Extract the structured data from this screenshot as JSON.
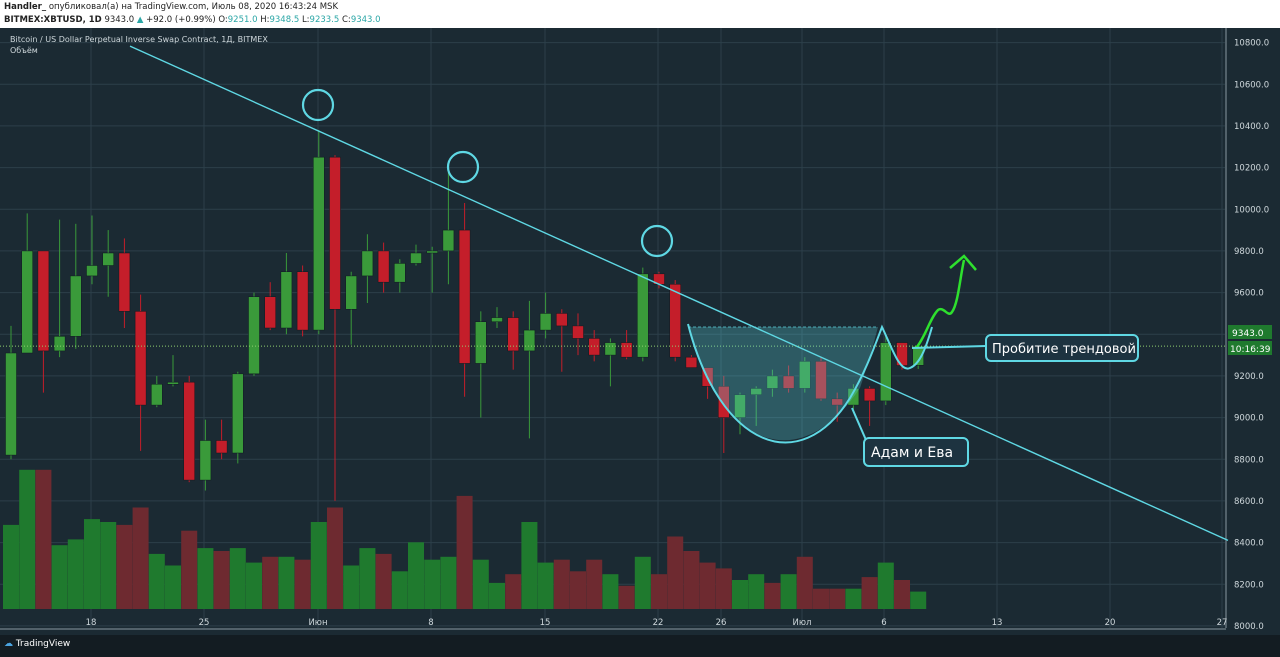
{
  "header": {
    "author": "Handler_",
    "published": "опубликовал(а) на TradingView.com, Июль 08, 2020 16:43:24 MSK",
    "symbol": "BITMEX:XBTUSD, 1D",
    "last": "9343.0",
    "change": "+92.0 (+0.99%)",
    "o_label": "O:",
    "o_val": "9251.0",
    "h_label": "H:",
    "h_val": "9348.5",
    "l_label": "L:",
    "l_val": "9233.5",
    "c_label": "C:",
    "c_val": "9343.0"
  },
  "chart_title": "Bitcoin / US Dollar Perpetual Inverse Swap Contract, 1Д, BITMEX",
  "volume_label": "Объём",
  "price_tag": "9343.0",
  "time_tag": "10:16:39",
  "annotations": {
    "breakout": "Пробитие трендовой",
    "adam_eve": "Адам и Ева"
  },
  "footer": {
    "brand": "TradingView"
  },
  "colors": {
    "up": "#3a9a3a",
    "down": "#c41e2a",
    "vol_up": "#1f7a2e",
    "vol_down": "#6e2a30",
    "trend": "#5fd8e4",
    "arrow": "#2ee02e",
    "bg": "#1b2a33"
  },
  "chart_data": {
    "type": "candlestick",
    "title": "Bitcoin / US Dollar Perpetual Inverse Swap Contract, 1Д, BITMEX",
    "y_ticks": [
      8000,
      8200,
      8400,
      8600,
      8800,
      9000,
      9200,
      9400,
      9600,
      9800,
      10000,
      10200,
      10400,
      10600,
      10800
    ],
    "ylim": [
      7990,
      10870
    ],
    "x_tick_labels": [
      "18",
      "25",
      "Июн",
      "8",
      "15",
      "22",
      "26",
      "Июл",
      "6",
      "13",
      "20",
      "27"
    ],
    "candles": [
      {
        "o": 8820,
        "h": 9440,
        "l": 8800,
        "c": 9310
      },
      {
        "o": 9310,
        "h": 9980,
        "l": 9310,
        "c": 9800
      },
      {
        "o": 9800,
        "h": 9800,
        "l": 9120,
        "c": 9320
      },
      {
        "o": 9320,
        "h": 9950,
        "l": 9290,
        "c": 9390
      },
      {
        "o": 9390,
        "h": 9930,
        "l": 9330,
        "c": 9680
      },
      {
        "o": 9680,
        "h": 9970,
        "l": 9640,
        "c": 9730
      },
      {
        "o": 9730,
        "h": 9900,
        "l": 9580,
        "c": 9790
      },
      {
        "o": 9790,
        "h": 9860,
        "l": 9430,
        "c": 9510
      },
      {
        "o": 9510,
        "h": 9590,
        "l": 8840,
        "c": 9060
      },
      {
        "o": 9060,
        "h": 9200,
        "l": 9050,
        "c": 9160
      },
      {
        "o": 9160,
        "h": 9300,
        "l": 9150,
        "c": 9170
      },
      {
        "o": 9170,
        "h": 9200,
        "l": 8690,
        "c": 8700
      },
      {
        "o": 8700,
        "h": 8990,
        "l": 8650,
        "c": 8890
      },
      {
        "o": 8890,
        "h": 8990,
        "l": 8800,
        "c": 8830
      },
      {
        "o": 8830,
        "h": 9220,
        "l": 8780,
        "c": 9210
      },
      {
        "o": 9210,
        "h": 9600,
        "l": 9200,
        "c": 9580
      },
      {
        "o": 9580,
        "h": 9650,
        "l": 9420,
        "c": 9430
      },
      {
        "o": 9430,
        "h": 9790,
        "l": 9400,
        "c": 9700
      },
      {
        "o": 9700,
        "h": 9730,
        "l": 9390,
        "c": 9420
      },
      {
        "o": 9420,
        "h": 10380,
        "l": 9400,
        "c": 10250
      },
      {
        "o": 10250,
        "h": 10260,
        "l": 8600,
        "c": 9520
      },
      {
        "o": 9520,
        "h": 9700,
        "l": 9350,
        "c": 9680
      },
      {
        "o": 9680,
        "h": 9880,
        "l": 9550,
        "c": 9800
      },
      {
        "o": 9800,
        "h": 9840,
        "l": 9600,
        "c": 9650
      },
      {
        "o": 9650,
        "h": 9760,
        "l": 9600,
        "c": 9740
      },
      {
        "o": 9740,
        "h": 9830,
        "l": 9730,
        "c": 9790
      },
      {
        "o": 9790,
        "h": 9820,
        "l": 9600,
        "c": 9800
      },
      {
        "o": 9800,
        "h": 10180,
        "l": 9640,
        "c": 9900
      },
      {
        "o": 9900,
        "h": 10030,
        "l": 9100,
        "c": 9260
      },
      {
        "o": 9260,
        "h": 9510,
        "l": 9000,
        "c": 9460
      },
      {
        "o": 9460,
        "h": 9530,
        "l": 9430,
        "c": 9480
      },
      {
        "o": 9480,
        "h": 9510,
        "l": 9230,
        "c": 9320
      },
      {
        "o": 9320,
        "h": 9560,
        "l": 8900,
        "c": 9420
      },
      {
        "o": 9420,
        "h": 9600,
        "l": 9380,
        "c": 9500
      },
      {
        "o": 9500,
        "h": 9520,
        "l": 9220,
        "c": 9440
      },
      {
        "o": 9440,
        "h": 9500,
        "l": 9300,
        "c": 9380
      },
      {
        "o": 9380,
        "h": 9420,
        "l": 9270,
        "c": 9300
      },
      {
        "o": 9300,
        "h": 9380,
        "l": 9150,
        "c": 9360
      },
      {
        "o": 9360,
        "h": 9420,
        "l": 9280,
        "c": 9290
      },
      {
        "o": 9290,
        "h": 9720,
        "l": 9270,
        "c": 9690
      },
      {
        "o": 9690,
        "h": 9700,
        "l": 9620,
        "c": 9640
      },
      {
        "o": 9640,
        "h": 9660,
        "l": 9270,
        "c": 9290
      },
      {
        "o": 9290,
        "h": 9300,
        "l": 9240,
        "c": 9240
      },
      {
        "o": 9240,
        "h": 9240,
        "l": 9090,
        "c": 9150
      },
      {
        "o": 9150,
        "h": 9200,
        "l": 8830,
        "c": 9000
      },
      {
        "o": 9000,
        "h": 9120,
        "l": 8920,
        "c": 9110
      },
      {
        "o": 9110,
        "h": 9150,
        "l": 8960,
        "c": 9140
      },
      {
        "o": 9140,
        "h": 9230,
        "l": 9100,
        "c": 9200
      },
      {
        "o": 9200,
        "h": 9250,
        "l": 9120,
        "c": 9140
      },
      {
        "o": 9140,
        "h": 9290,
        "l": 9120,
        "c": 9270
      },
      {
        "o": 9270,
        "h": 9290,
        "l": 9080,
        "c": 9090
      },
      {
        "o": 9090,
        "h": 9120,
        "l": 8980,
        "c": 9060
      },
      {
        "o": 9060,
        "h": 9160,
        "l": 9040,
        "c": 9140
      },
      {
        "o": 9140,
        "h": 9150,
        "l": 8960,
        "c": 9080
      },
      {
        "o": 9080,
        "h": 9400,
        "l": 9060,
        "c": 9360
      },
      {
        "o": 9360,
        "h": 9360,
        "l": 9230,
        "c": 9250
      },
      {
        "o": 9251,
        "h": 9348.5,
        "l": 9233.5,
        "c": 9343
      }
    ],
    "volume": [
      {
        "v": 0.29,
        "up": true
      },
      {
        "v": 0.48,
        "up": true
      },
      {
        "v": 0.48,
        "up": false
      },
      {
        "v": 0.22,
        "up": true
      },
      {
        "v": 0.24,
        "up": true
      },
      {
        "v": 0.31,
        "up": true
      },
      {
        "v": 0.3,
        "up": true
      },
      {
        "v": 0.29,
        "up": false
      },
      {
        "v": 0.35,
        "up": false
      },
      {
        "v": 0.19,
        "up": true
      },
      {
        "v": 0.15,
        "up": true
      },
      {
        "v": 0.27,
        "up": false
      },
      {
        "v": 0.21,
        "up": true
      },
      {
        "v": 0.2,
        "up": false
      },
      {
        "v": 0.21,
        "up": true
      },
      {
        "v": 0.16,
        "up": true
      },
      {
        "v": 0.18,
        "up": false
      },
      {
        "v": 0.18,
        "up": true
      },
      {
        "v": 0.17,
        "up": false
      },
      {
        "v": 0.3,
        "up": true
      },
      {
        "v": 0.35,
        "up": false
      },
      {
        "v": 0.15,
        "up": true
      },
      {
        "v": 0.21,
        "up": true
      },
      {
        "v": 0.19,
        "up": false
      },
      {
        "v": 0.13,
        "up": true
      },
      {
        "v": 0.23,
        "up": true
      },
      {
        "v": 0.17,
        "up": true
      },
      {
        "v": 0.18,
        "up": true
      },
      {
        "v": 0.39,
        "up": false
      },
      {
        "v": 0.17,
        "up": true
      },
      {
        "v": 0.09,
        "up": true
      },
      {
        "v": 0.12,
        "up": false
      },
      {
        "v": 0.3,
        "up": true
      },
      {
        "v": 0.16,
        "up": true
      },
      {
        "v": 0.17,
        "up": false
      },
      {
        "v": 0.13,
        "up": false
      },
      {
        "v": 0.17,
        "up": false
      },
      {
        "v": 0.12,
        "up": true
      },
      {
        "v": 0.08,
        "up": false
      },
      {
        "v": 0.18,
        "up": true
      },
      {
        "v": 0.12,
        "up": false
      },
      {
        "v": 0.25,
        "up": false
      },
      {
        "v": 0.2,
        "up": false
      },
      {
        "v": 0.16,
        "up": false
      },
      {
        "v": 0.14,
        "up": false
      },
      {
        "v": 0.1,
        "up": true
      },
      {
        "v": 0.12,
        "up": true
      },
      {
        "v": 0.09,
        "up": false
      },
      {
        "v": 0.12,
        "up": true
      },
      {
        "v": 0.18,
        "up": false
      },
      {
        "v": 0.07,
        "up": false
      },
      {
        "v": 0.07,
        "up": false
      },
      {
        "v": 0.07,
        "up": true
      },
      {
        "v": 0.11,
        "up": false
      },
      {
        "v": 0.16,
        "up": true
      },
      {
        "v": 0.1,
        "up": false
      },
      {
        "v": 0.06,
        "up": true
      }
    ],
    "overlays": {
      "trendline": {
        "p1": {
          "i": 8,
          "y": 10760
        },
        "p2": {
          "i": 68,
          "y": 8660
        }
      },
      "price_line": 9343.0
    }
  }
}
